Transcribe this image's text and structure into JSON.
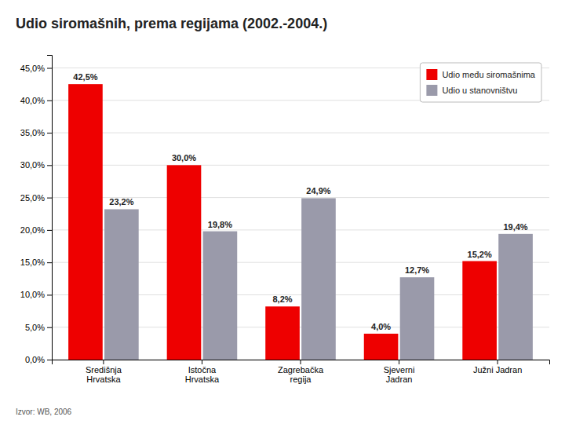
{
  "chart_data": {
    "type": "bar",
    "title": "Udio siromašnih, prema regijama (2002.-2004.)",
    "source": "Izvor: WB, 2006",
    "categories": [
      "Središnja\nHrvatska",
      "Istočna\nHrvatska",
      "Zagrebačka\nregija",
      "Sjeverni\nJadran",
      "Južni Jadran"
    ],
    "series": [
      {
        "name": "Udio među siromašnima",
        "color": "#ee0000",
        "values": [
          42.5,
          30.0,
          8.2,
          4.0,
          15.2
        ],
        "value_labels": [
          "42,5%",
          "30,0%",
          "8,2%",
          "4,0%",
          "15,2%"
        ]
      },
      {
        "name": "Udio u stanovništvu",
        "color": "#9a9aaa",
        "values": [
          23.2,
          19.8,
          24.9,
          12.7,
          19.4
        ],
        "value_labels": [
          "23,2%",
          "19,8%",
          "24,9%",
          "12,7%",
          "19,4%"
        ]
      }
    ],
    "ylim": [
      0,
      47
    ],
    "yticks": [
      {
        "value": 0.0,
        "label": "0,0%"
      },
      {
        "value": 5.0,
        "label": "5,0%"
      },
      {
        "value": 10.0,
        "label": "10,0%"
      },
      {
        "value": 15.0,
        "label": "15,0%"
      },
      {
        "value": 20.0,
        "label": "20,0%"
      },
      {
        "value": 25.0,
        "label": "25,0%"
      },
      {
        "value": 30.0,
        "label": "30,0%"
      },
      {
        "value": 35.0,
        "label": "35,0%"
      },
      {
        "value": 40.0,
        "label": "40,0%"
      },
      {
        "value": 45.0,
        "label": "45,0%"
      }
    ],
    "grid": true,
    "legend": "upper right",
    "data_labels": true
  }
}
